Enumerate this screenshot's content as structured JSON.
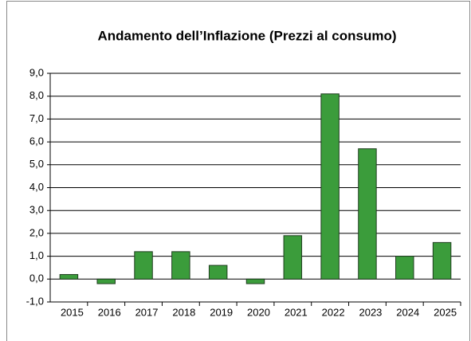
{
  "chart_data": {
    "type": "bar",
    "title": "Andamento dell’Inflazione (Prezzi al consumo)",
    "categories": [
      "2015",
      "2016",
      "2017",
      "2018",
      "2019",
      "2020",
      "2021",
      "2022",
      "2023",
      "2024",
      "2025"
    ],
    "values": [
      0.2,
      -0.2,
      1.2,
      1.2,
      0.6,
      -0.2,
      1.9,
      8.1,
      5.7,
      1.0,
      1.6
    ],
    "color": "#3b9c3b",
    "ylim": [
      -1,
      9
    ],
    "yticks": [
      {
        "value": -1,
        "label": "-1,0"
      },
      {
        "value": 0,
        "label": "0,0"
      },
      {
        "value": 1,
        "label": "1,0"
      },
      {
        "value": 2,
        "label": "2,0"
      },
      {
        "value": 3,
        "label": "3,0"
      },
      {
        "value": 4,
        "label": "4,0"
      },
      {
        "value": 5,
        "label": "5,0"
      },
      {
        "value": 6,
        "label": "6,0"
      },
      {
        "value": 7,
        "label": "7,0"
      },
      {
        "value": 8,
        "label": "8,0"
      },
      {
        "value": 9,
        "label": "9,0"
      }
    ],
    "grid": true
  }
}
